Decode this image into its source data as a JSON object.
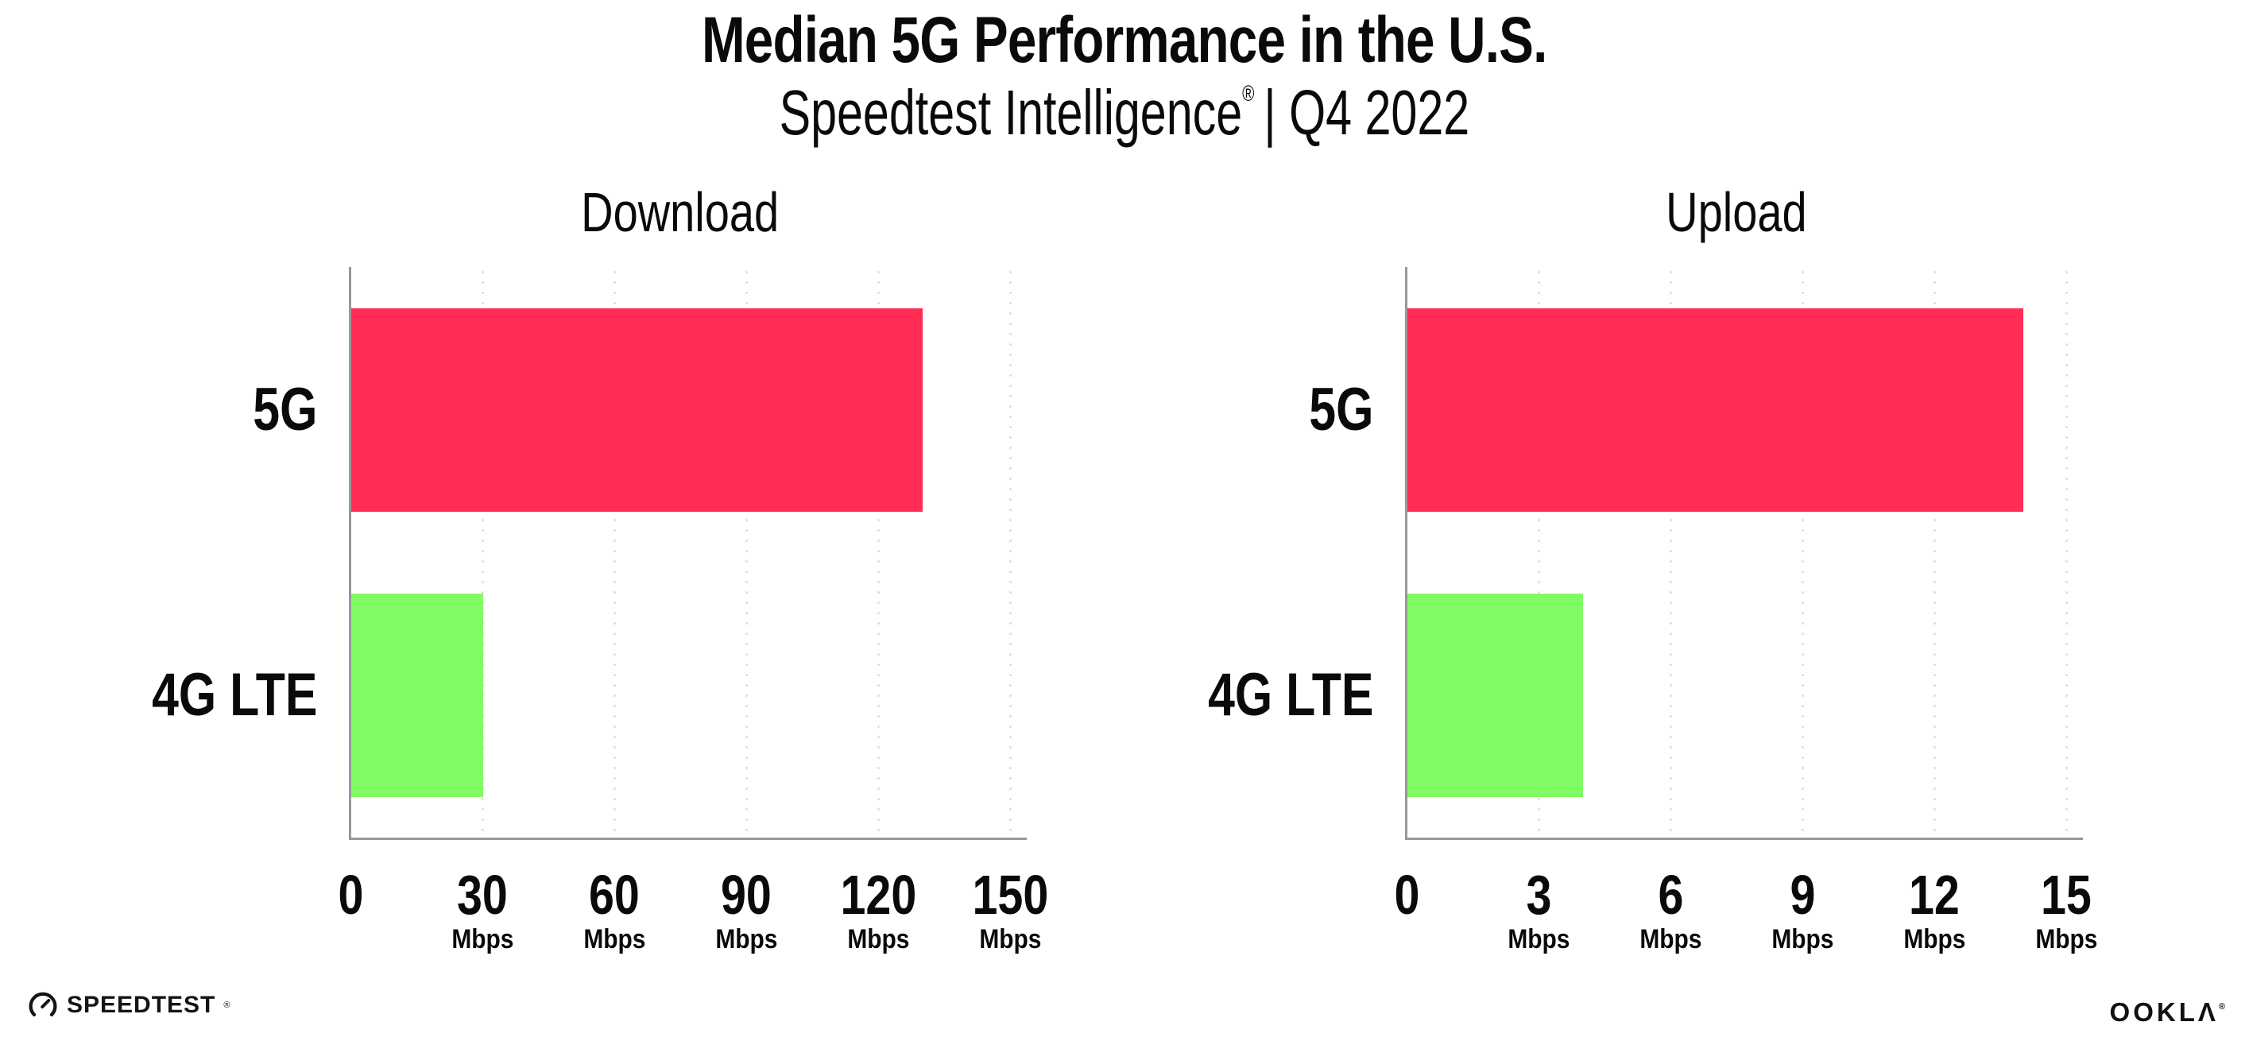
{
  "header": {
    "title": "Median 5G Performance in the U.S.",
    "subtitle_product": "Speedtest Intelligence",
    "subtitle_registered": "®",
    "subtitle_rest": "| Q4 2022"
  },
  "chart_data": [
    {
      "type": "bar",
      "orientation": "horizontal",
      "title": "Download",
      "categories": [
        "5G",
        "4G LTE"
      ],
      "values": [
        130,
        30
      ],
      "unit": "Mbps",
      "xlim": [
        0,
        150
      ],
      "xticks": [
        0,
        30,
        60,
        90,
        120,
        150
      ],
      "bar_colors": [
        "#FF2D55",
        "#80FB63"
      ],
      "grid": "dotted vertical gridlines, no legend"
    },
    {
      "type": "bar",
      "orientation": "horizontal",
      "title": "Upload",
      "categories": [
        "5G",
        "4G LTE"
      ],
      "values": [
        14,
        4
      ],
      "unit": "Mbps",
      "xlim": [
        0,
        15
      ],
      "xticks": [
        0,
        3,
        6,
        9,
        12,
        15
      ],
      "bar_colors": [
        "#FF2D55",
        "#80FB63"
      ],
      "grid": "dotted vertical gridlines, no legend"
    }
  ],
  "footer": {
    "speedtest_label": "SPEEDTEST",
    "speedtest_registered": "®",
    "ookla_label": "OOKLA",
    "ookla_registered": "®"
  },
  "colors": {
    "bar_5g": "#FF2D55",
    "bar_4g_lte": "#80FB63",
    "axis": "#97979F",
    "gridline_dot": "#DADAE6",
    "text": "#0A0A0A",
    "background": "#FFFFFF"
  }
}
